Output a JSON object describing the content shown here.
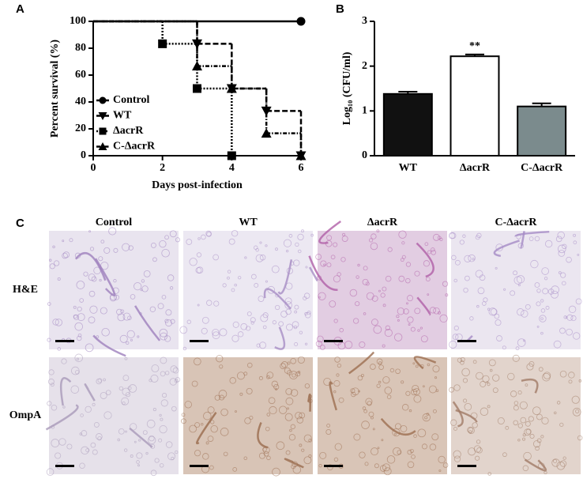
{
  "chart_data": [
    {
      "type": "step",
      "panel_label": "A",
      "xlabel": "Days post-infection",
      "ylabel": "Percent survival (%)",
      "xlim": [
        0,
        6
      ],
      "xticks": [
        0,
        2,
        4,
        6
      ],
      "ylim": [
        0,
        100
      ],
      "yticks": [
        0,
        20,
        40,
        60,
        80,
        100
      ],
      "legend": "lower left",
      "series": [
        {
          "name": "Control",
          "color": "#000000",
          "marker": "circle",
          "linestyle": "solid",
          "x": [
            0,
            6
          ],
          "values": [
            100,
            100
          ]
        },
        {
          "name": "WT",
          "color": "#000000",
          "marker": "triangle-down",
          "linestyle": "dashed",
          "x": [
            0,
            3,
            4,
            5,
            6
          ],
          "values": [
            100,
            83.3,
            50,
            33.3,
            0
          ]
        },
        {
          "name": "ΔacrR",
          "color": "#000000",
          "marker": "square",
          "linestyle": "dotted",
          "x": [
            0,
            2,
            3,
            4
          ],
          "values": [
            100,
            83.3,
            50,
            0
          ]
        },
        {
          "name": "C-ΔacrR",
          "color": "#000000",
          "marker": "triangle-up",
          "linestyle": "dashdot",
          "x": [
            0,
            3,
            4,
            5,
            6
          ],
          "values": [
            100,
            66.7,
            50,
            16.7,
            0
          ]
        }
      ]
    },
    {
      "type": "bar",
      "panel_label": "B",
      "ylabel": "Log₁₀ (CFU/ml)",
      "categories": [
        "WT",
        "ΔacrR",
        "C-ΔacrR"
      ],
      "values": [
        1.38,
        2.22,
        1.1
      ],
      "errors": [
        0.05,
        0.04,
        0.07
      ],
      "colors": [
        "#111111",
        "#ffffff",
        "#7b8b8d"
      ],
      "annotations": [
        null,
        "**",
        null
      ],
      "ylim": [
        0,
        3
      ],
      "yticks": [
        0,
        1,
        2,
        3
      ]
    }
  ],
  "panel_c": {
    "panel_label": "C",
    "columns": [
      "Control",
      "WT",
      "ΔacrR",
      "C-ΔacrR"
    ],
    "rows": [
      "H&E",
      "OmpA"
    ]
  }
}
